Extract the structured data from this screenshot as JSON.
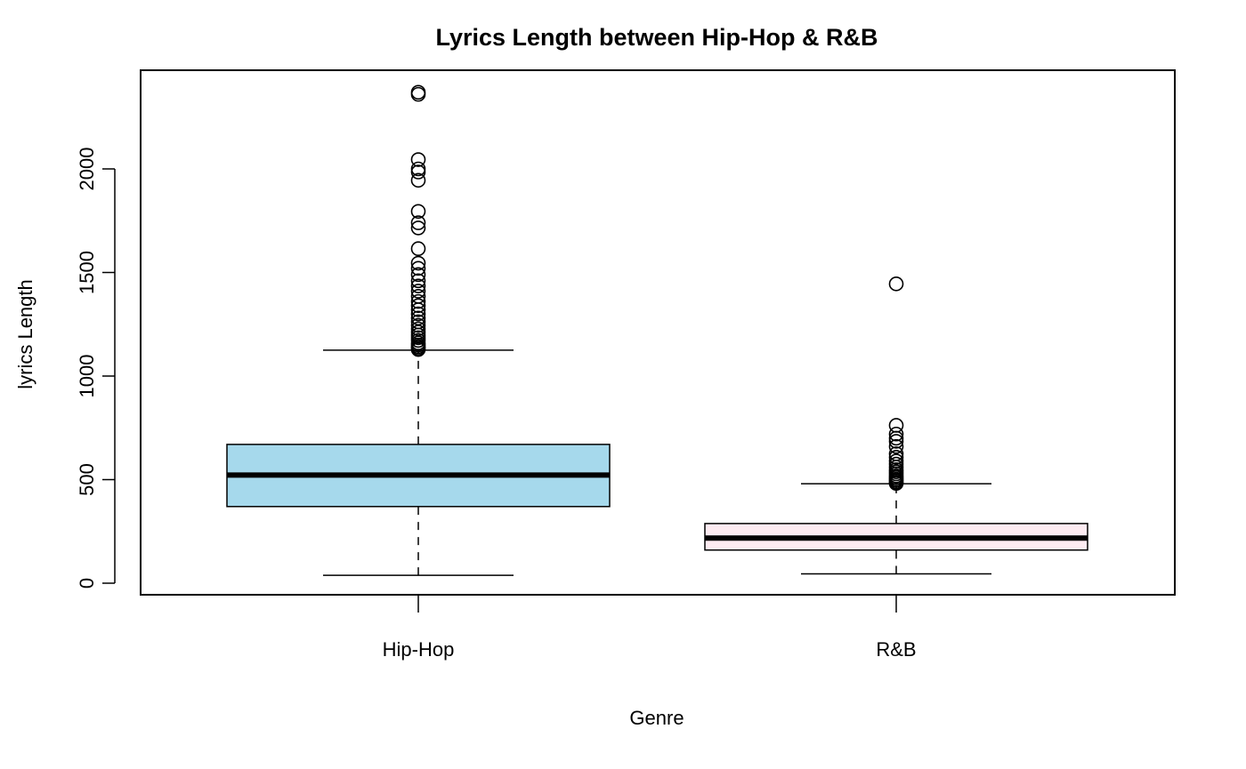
{
  "chart_data": {
    "type": "box",
    "title": "Lyrics Length between Hip-Hop & R&B",
    "xlabel": "Genre",
    "ylabel": "lyrics Length",
    "ylim": [
      -50,
      2400
    ],
    "yticks": [
      0,
      500,
      1000,
      1500,
      2000
    ],
    "yticks_text": [
      "0",
      "500",
      "1000",
      "1500",
      "2000"
    ],
    "grid": false,
    "categories": [
      "Hip-Hop",
      "R&B"
    ],
    "series": [
      {
        "category": "Hip-Hop",
        "fill": "#a6d9ec",
        "whisker_low": 38,
        "q1": 370,
        "median": 522,
        "q3": 670,
        "whisker_high": 1125,
        "outliers": [
          1128,
          1135,
          1142,
          1150,
          1160,
          1172,
          1185,
          1198,
          1212,
          1228,
          1245,
          1262,
          1280,
          1300,
          1320,
          1340,
          1360,
          1385,
          1410,
          1435,
          1460,
          1490,
          1520,
          1545,
          1615,
          1715,
          1740,
          1795,
          1945,
          1985,
          2000,
          2045,
          2360,
          2370
        ]
      },
      {
        "category": "R&B",
        "fill": "#fdebf1",
        "whisker_low": 45,
        "q1": 160,
        "median": 218,
        "q3": 288,
        "whisker_high": 480,
        "outliers": [
          482,
          488,
          495,
          502,
          510,
          518,
          528,
          538,
          548,
          560,
          575,
          590,
          608,
          625,
          660,
          685,
          700,
          720,
          762,
          1445
        ]
      }
    ]
  }
}
